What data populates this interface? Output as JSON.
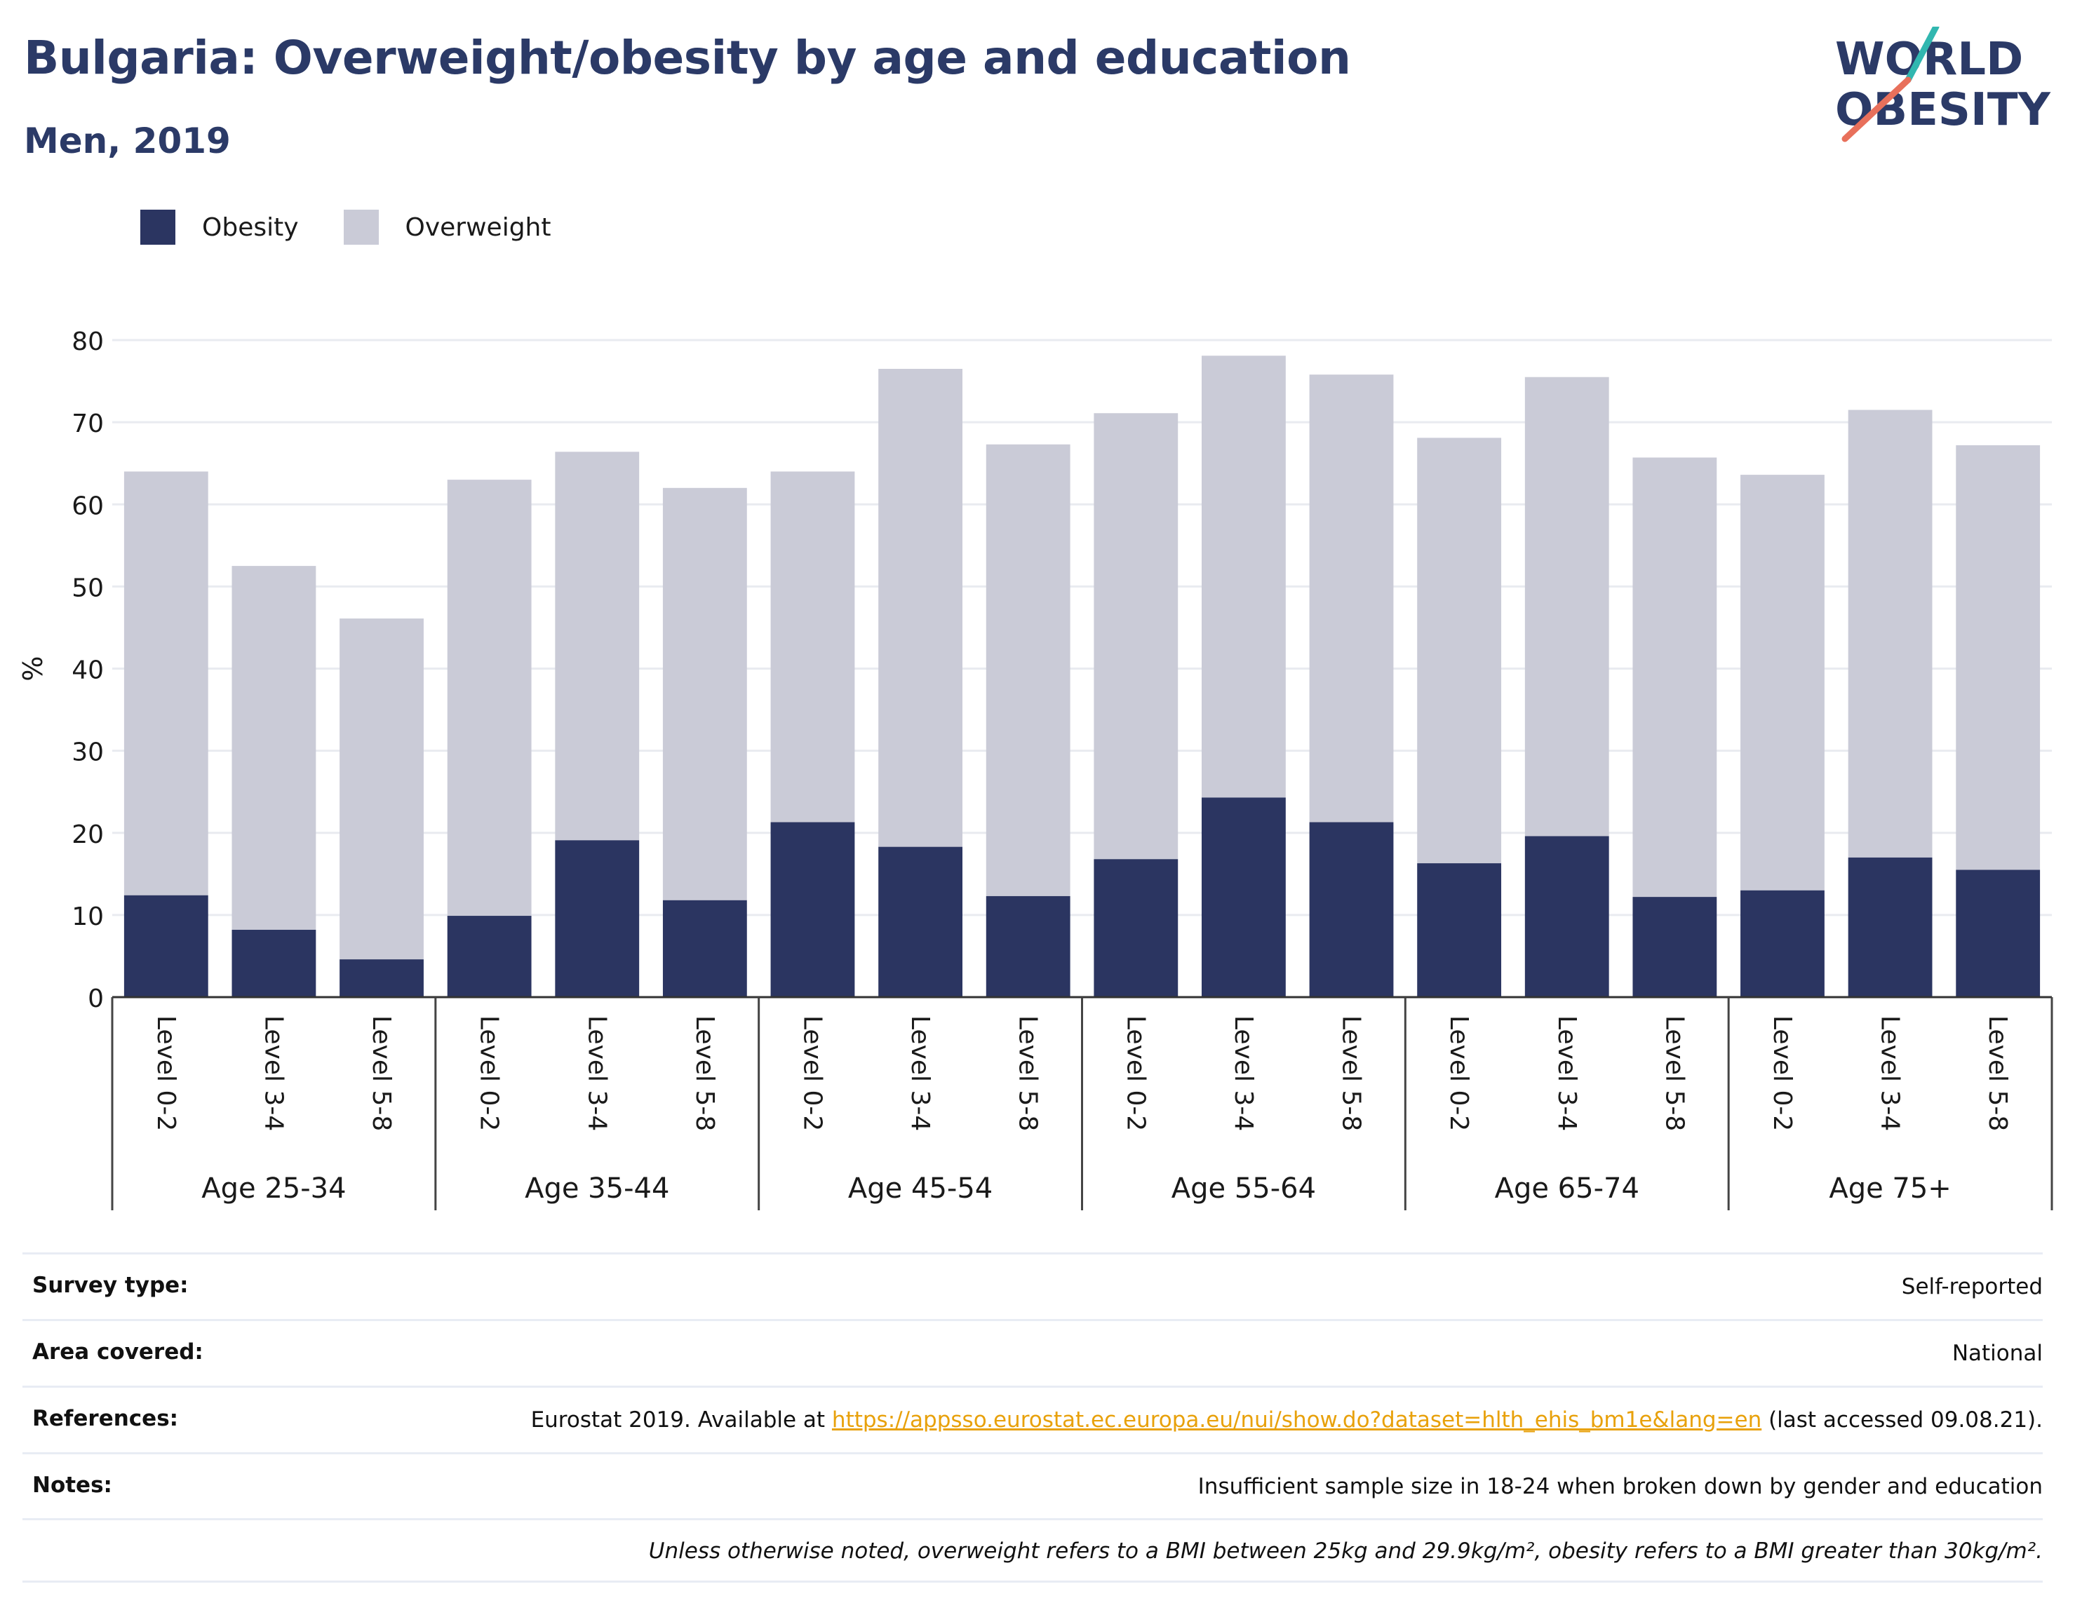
{
  "title": "Bulgaria: Overweight/obesity by age and education",
  "subtitle": "Men, 2019",
  "logo": {
    "line1": "WORLD",
    "line2": "OBESITY"
  },
  "legend": [
    {
      "name": "Obesity",
      "color": "#2b3561"
    },
    {
      "name": "Overweight",
      "color": "#cacbd7"
    }
  ],
  "chart_data": {
    "type": "bar",
    "stacked": true,
    "ylabel": "%",
    "ylim": [
      0,
      80
    ],
    "yticks": [
      0,
      10,
      20,
      30,
      40,
      50,
      60,
      70,
      80
    ],
    "grid": true,
    "legend_position": "top-left",
    "groups": [
      {
        "label": "Age 25-34",
        "categories": [
          "Level 0-2",
          "Level 3-4",
          "Level 5-8"
        ]
      },
      {
        "label": "Age 35-44",
        "categories": [
          "Level 0-2",
          "Level 3-4",
          "Level 5-8"
        ]
      },
      {
        "label": "Age 45-54",
        "categories": [
          "Level 0-2",
          "Level 3-4",
          "Level 5-8"
        ]
      },
      {
        "label": "Age 55-64",
        "categories": [
          "Level 0-2",
          "Level 3-4",
          "Level 5-8"
        ]
      },
      {
        "label": "Age 65-74",
        "categories": [
          "Level 0-2",
          "Level 3-4",
          "Level 5-8"
        ]
      },
      {
        "label": "Age 75+",
        "categories": [
          "Level 0-2",
          "Level 3-4",
          "Level 5-8"
        ]
      }
    ],
    "series": [
      {
        "name": "Obesity",
        "color": "#2b3561",
        "values": [
          12.4,
          8.2,
          4.6,
          9.9,
          19.1,
          11.8,
          21.3,
          18.3,
          12.3,
          16.8,
          24.3,
          21.3,
          16.3,
          19.6,
          12.2,
          13.0,
          17.0,
          15.5
        ]
      },
      {
        "name": "Overweight",
        "color": "#cacbd7",
        "values": [
          51.6,
          44.3,
          41.5,
          53.1,
          47.3,
          50.2,
          42.7,
          58.2,
          55.0,
          54.3,
          53.8,
          54.5,
          51.8,
          55.9,
          53.5,
          50.6,
          54.5,
          51.7
        ]
      }
    ]
  },
  "meta": {
    "survey_type_label": "Survey type:",
    "survey_type_value": "Self-reported",
    "area_label": "Area covered:",
    "area_value": "National",
    "references_label": "References:",
    "references_prefix": "Eurostat 2019. Available at ",
    "references_link": "https://appsso.eurostat.ec.europa.eu/nui/show.do?dataset=hlth_ehis_bm1e&lang=en",
    "references_suffix": " (last accessed 09.08.21).",
    "notes_label": "Notes:",
    "notes_value": "Insufficient sample size in 18-24 when broken down by gender and education",
    "footnote": "Unless otherwise noted, overweight refers to a BMI between 25kg and 29.9kg/m², obesity refers to a BMI greater than 30kg/m²."
  }
}
